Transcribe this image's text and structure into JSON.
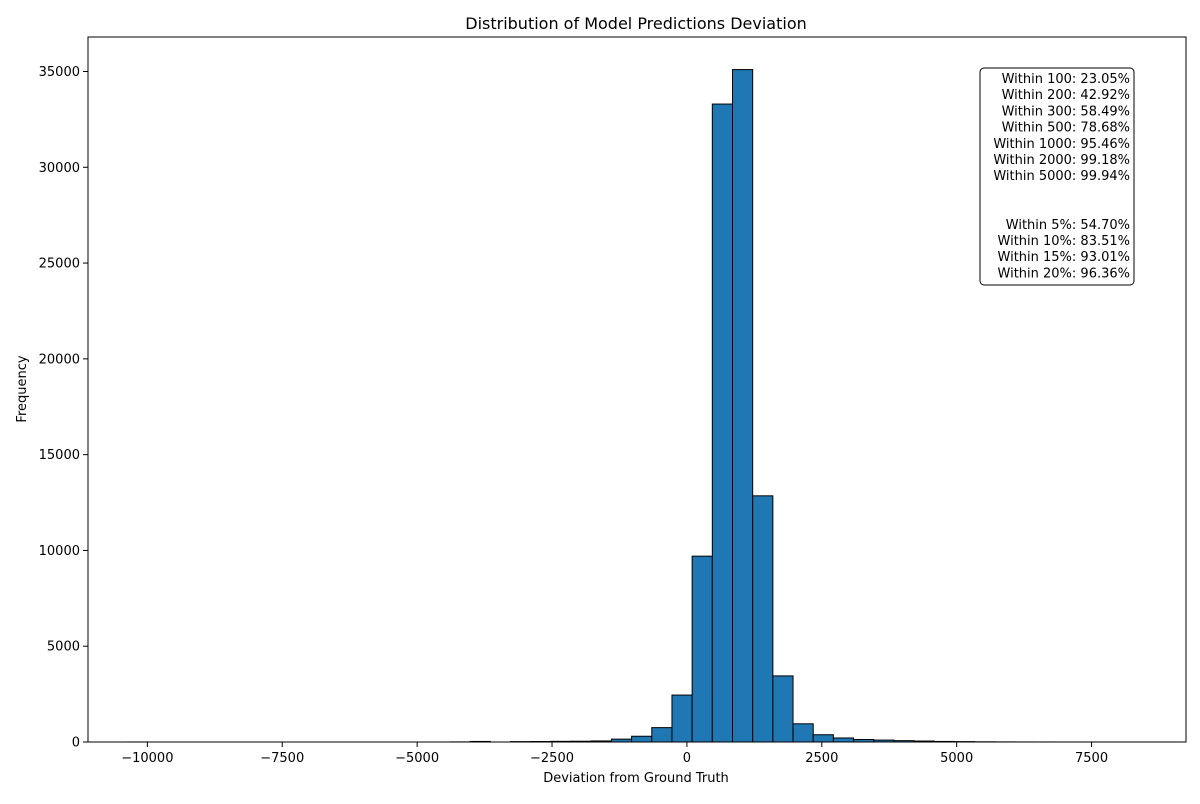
{
  "chart_data": {
    "type": "bar",
    "title": "Distribution of Model Predictions Deviation",
    "xlabel": "Deviation from Ground Truth",
    "ylabel": "Frequency",
    "xlim": [
      -11100,
      9250
    ],
    "ylim": [
      0,
      36800
    ],
    "xticks": [
      {
        "value": -10000,
        "label": "−10000"
      },
      {
        "value": -7500,
        "label": "−7500"
      },
      {
        "value": -5000,
        "label": "−5000"
      },
      {
        "value": -2500,
        "label": "−2500"
      },
      {
        "value": 0,
        "label": "0"
      },
      {
        "value": 2500,
        "label": "2500"
      },
      {
        "value": 5000,
        "label": "5000"
      },
      {
        "value": 7500,
        "label": "7500"
      }
    ],
    "yticks": [
      {
        "value": 0,
        "label": "0"
      },
      {
        "value": 5000,
        "label": "5000"
      },
      {
        "value": 10000,
        "label": "10000"
      },
      {
        "value": 15000,
        "label": "15000"
      },
      {
        "value": 20000,
        "label": "20000"
      },
      {
        "value": 25000,
        "label": "25000"
      },
      {
        "value": 30000,
        "label": "30000"
      },
      {
        "value": 35000,
        "label": "35000"
      }
    ],
    "bar_color": "#1f77b4",
    "bar_edge_color": "#000000",
    "bin_width": 374,
    "bin_start": -10375,
    "counts": [
      2,
      0,
      0,
      0,
      0,
      0,
      0,
      0,
      0,
      0,
      0,
      0,
      0,
      0,
      0,
      0,
      5,
      30,
      0,
      20,
      25,
      35,
      40,
      55,
      150,
      300,
      750,
      2450,
      9700,
      33300,
      35100,
      12850,
      3450,
      950,
      380,
      210,
      130,
      100,
      70,
      50,
      30,
      20,
      10,
      5,
      3,
      2,
      1,
      1,
      1,
      1,
      1,
      1,
      0
    ],
    "annotation": {
      "lines": [
        "Within 100: 23.05%",
        "Within 200: 42.92%",
        "Within 300: 58.49%",
        "Within 500: 78.68%",
        "Within 1000: 95.46%",
        "Within 2000: 99.18%",
        "Within 5000: 99.94%",
        "",
        "",
        "Within 5%: 54.70%",
        "Within 10%: 83.51%",
        "Within 15%: 93.01%",
        "Within 20%: 96.36%"
      ],
      "location": "top-right"
    },
    "grid": false
  }
}
